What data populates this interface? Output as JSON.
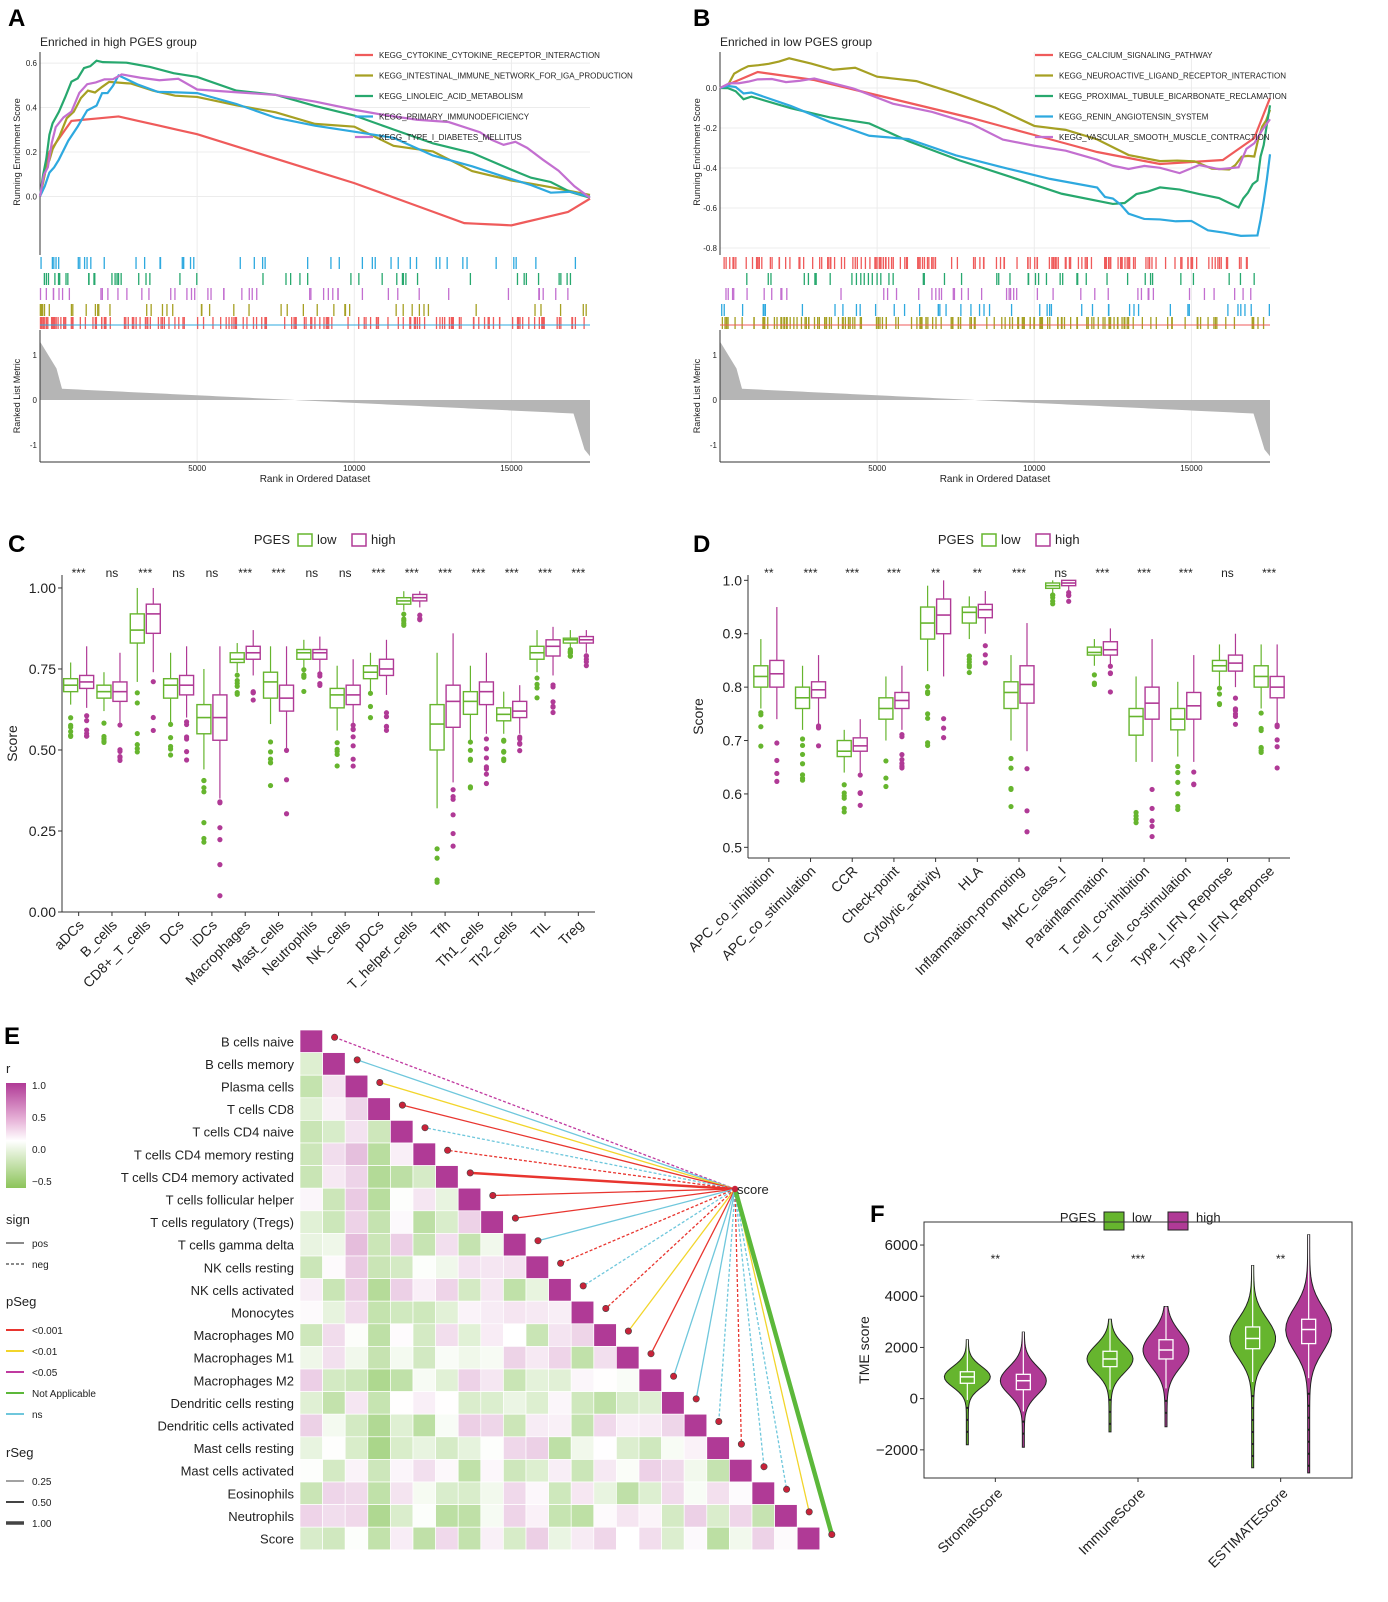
{
  "panels": {
    "A": "A",
    "B": "B",
    "C": "C",
    "D": "D",
    "E": "E",
    "F": "F"
  },
  "colors": {
    "low": "#66b52e",
    "high": "#b03a96",
    "red": "#ef5b5b",
    "olive": "#a6a023",
    "green": "#27a86e",
    "blue": "#2ea9df",
    "violet": "#c36fd0",
    "gray": "#b5b5b5"
  },
  "chart_data": [
    {
      "id": "A",
      "type": "line",
      "title": "Enriched in high PGES group",
      "ylabel": "Running Enrichment Score",
      "ylabel2": "Ranked List Metric",
      "xlabel": "Rank in Ordered Dataset",
      "yticks": [
        "0.0",
        "0.2",
        "0.4",
        "0.6"
      ],
      "y2ticks": [
        "1",
        "0",
        "-1"
      ],
      "xticks": [
        "5000",
        "10000",
        "15000"
      ],
      "ylim": [
        -0.25,
        0.65
      ],
      "xlim": [
        0,
        17500
      ],
      "series": [
        {
          "name": "KEGG_CYTOKINE_CYTOKINE_RECEPTOR_INTERACTION",
          "points": [
            [
              0,
              0
            ],
            [
              300,
              0.2
            ],
            [
              1000,
              0.34
            ],
            [
              2500,
              0.36
            ],
            [
              5000,
              0.28
            ],
            [
              10000,
              0.06
            ],
            [
              13500,
              -0.12
            ],
            [
              15000,
              -0.13
            ],
            [
              16800,
              -0.07
            ],
            [
              17500,
              -0.01
            ]
          ]
        },
        {
          "name": "KEGG_INTESTINAL_IMMUNE_NETWORK_FOR_IGA_PRODUCTION",
          "points": [
            [
              0,
              0
            ],
            [
              400,
              0.23
            ],
            [
              1300,
              0.45
            ],
            [
              2200,
              0.5
            ],
            [
              5000,
              0.45
            ],
            [
              10000,
              0.3
            ],
            [
              15000,
              0.08
            ],
            [
              17500,
              0
            ]
          ]
        },
        {
          "name": "KEGG_LINOLEIC_ACID_METABOLISM",
          "points": [
            [
              0,
              0
            ],
            [
              400,
              0.35
            ],
            [
              1200,
              0.55
            ],
            [
              2000,
              0.61
            ],
            [
              5000,
              0.53
            ],
            [
              10000,
              0.35
            ],
            [
              15000,
              0.13
            ],
            [
              17500,
              0
            ]
          ]
        },
        {
          "name": "KEGG_PRIMARY_IMMUNODEFICIENCY",
          "points": [
            [
              0,
              0
            ],
            [
              600,
              0.18
            ],
            [
              1800,
              0.43
            ],
            [
              2500,
              0.53
            ],
            [
              5000,
              0.45
            ],
            [
              10000,
              0.3
            ],
            [
              15000,
              0.07
            ],
            [
              17500,
              0
            ]
          ]
        },
        {
          "name": "KEGG_TYPE_I_DIABETES_MELLITUS",
          "points": [
            [
              0,
              0
            ],
            [
              500,
              0.3
            ],
            [
              1500,
              0.5
            ],
            [
              2600,
              0.54
            ],
            [
              5000,
              0.5
            ],
            [
              10000,
              0.4
            ],
            [
              14000,
              0.3
            ],
            [
              15500,
              0.2
            ],
            [
              17500,
              0
            ]
          ]
        }
      ]
    },
    {
      "id": "B",
      "type": "line",
      "title": "Enriched in low PGES group",
      "ylabel": "Running Enrichment Score",
      "ylabel2": "Ranked List Metric",
      "xlabel": "Rank in Ordered Dataset",
      "yticks": [
        "0.0",
        "-0.2",
        "-0.4",
        "-0.6",
        "-0.8"
      ],
      "y2ticks": [
        "1",
        "0",
        "-1"
      ],
      "xticks": [
        "5000",
        "10000",
        "15000"
      ],
      "ylim": [
        -0.82,
        0.18
      ],
      "xlim": [
        0,
        17500
      ],
      "series": [
        {
          "name": "KEGG_CALCIUM_SIGNALING_PATHWAY",
          "points": [
            [
              0,
              0
            ],
            [
              1200,
              0.08
            ],
            [
              3000,
              0.04
            ],
            [
              8000,
              -0.15
            ],
            [
              12000,
              -0.32
            ],
            [
              14000,
              -0.38
            ],
            [
              16000,
              -0.36
            ],
            [
              17000,
              -0.25
            ],
            [
              17500,
              -0.05
            ]
          ]
        },
        {
          "name": "KEGG_NEUROACTIVE_LIGAND_RECEPTOR_INTERACTION",
          "points": [
            [
              0,
              0
            ],
            [
              900,
              0.1
            ],
            [
              2200,
              0.14
            ],
            [
              5000,
              0.08
            ],
            [
              10000,
              -0.17
            ],
            [
              14000,
              -0.38
            ],
            [
              16200,
              -0.4
            ],
            [
              17000,
              -0.32
            ],
            [
              17500,
              -0.1
            ]
          ]
        },
        {
          "name": "KEGG_PROXIMAL_TUBULE_BICARBONATE_RECLAMATION",
          "points": [
            [
              0,
              0
            ],
            [
              1000,
              -0.05
            ],
            [
              6000,
              -0.25
            ],
            [
              12500,
              -0.6
            ],
            [
              14000,
              -0.5
            ],
            [
              16500,
              -0.58
            ],
            [
              17100,
              -0.45
            ],
            [
              17500,
              -0.1
            ]
          ]
        },
        {
          "name": "KEGG_RENIN_ANGIOTENSIN_SYSTEM",
          "points": [
            [
              0,
              0
            ],
            [
              1000,
              -0.03
            ],
            [
              6000,
              -0.28
            ],
            [
              12000,
              -0.52
            ],
            [
              13000,
              -0.62
            ],
            [
              15000,
              -0.68
            ],
            [
              17100,
              -0.75
            ],
            [
              17500,
              -0.35
            ]
          ]
        },
        {
          "name": "KEGG_VASCULAR_SMOOTH_MUSCLE_CONTRACTION",
          "points": [
            [
              0,
              0
            ],
            [
              1200,
              0.05
            ],
            [
              3000,
              0.03
            ],
            [
              8000,
              -0.2
            ],
            [
              12000,
              -0.35
            ],
            [
              14000,
              -0.42
            ],
            [
              16500,
              -0.38
            ],
            [
              17500,
              -0.15
            ]
          ]
        }
      ]
    },
    {
      "id": "C",
      "type": "box",
      "legend_title": "PGES",
      "legend_low": "low",
      "legend_high": "high",
      "ylabel": "Score",
      "ylim": [
        0,
        1.04
      ],
      "yticks": [
        "0.00",
        "0.25",
        "0.50",
        "0.75",
        "1.00"
      ],
      "categories": [
        "aDCs",
        "B_cells",
        "CD8+_T_cells",
        "DCs",
        "iDCs",
        "Macrophages",
        "Mast_cells",
        "Neutrophils",
        "NK_cells",
        "pDCs",
        "T_helper_cells",
        "Tfh",
        "Th1_cells",
        "Th2_cells",
        "TIL",
        "Treg"
      ],
      "sig": [
        "***",
        "ns",
        "***",
        "ns",
        "ns",
        "***",
        "***",
        "ns",
        "ns",
        "***",
        "***",
        "***",
        "***",
        "***",
        "***",
        "***"
      ],
      "low": [
        [
          0.68,
          0.7,
          0.72,
          0.64,
          0.77
        ],
        [
          0.66,
          0.68,
          0.7,
          0.62,
          0.74
        ],
        [
          0.83,
          0.87,
          0.92,
          0.71,
          1.0
        ],
        [
          0.66,
          0.7,
          0.72,
          0.58,
          0.8
        ],
        [
          0.55,
          0.6,
          0.64,
          0.44,
          0.75
        ],
        [
          0.77,
          0.78,
          0.8,
          0.74,
          0.83
        ],
        [
          0.66,
          0.71,
          0.74,
          0.58,
          0.82
        ],
        [
          0.78,
          0.8,
          0.81,
          0.75,
          0.84
        ],
        [
          0.63,
          0.67,
          0.69,
          0.56,
          0.76
        ],
        [
          0.72,
          0.74,
          0.76,
          0.68,
          0.8
        ],
        [
          0.95,
          0.96,
          0.97,
          0.93,
          0.99
        ],
        [
          0.5,
          0.58,
          0.64,
          0.32,
          0.8
        ],
        [
          0.61,
          0.65,
          0.68,
          0.53,
          0.76
        ],
        [
          0.59,
          0.61,
          0.63,
          0.55,
          0.68
        ],
        [
          0.78,
          0.8,
          0.82,
          0.74,
          0.87
        ],
        [
          0.83,
          0.84,
          0.845,
          0.81,
          0.87
        ]
      ],
      "high": [
        [
          0.69,
          0.71,
          0.73,
          0.63,
          0.82
        ],
        [
          0.65,
          0.68,
          0.71,
          0.58,
          0.8
        ],
        [
          0.86,
          0.92,
          0.95,
          0.74,
          1.0
        ],
        [
          0.67,
          0.7,
          0.73,
          0.6,
          0.82
        ],
        [
          0.53,
          0.6,
          0.67,
          0.35,
          0.82
        ],
        [
          0.78,
          0.8,
          0.82,
          0.73,
          0.87
        ],
        [
          0.62,
          0.66,
          0.7,
          0.5,
          0.82
        ],
        [
          0.78,
          0.8,
          0.81,
          0.74,
          0.85
        ],
        [
          0.64,
          0.67,
          0.7,
          0.58,
          0.78
        ],
        [
          0.73,
          0.75,
          0.78,
          0.67,
          0.84
        ],
        [
          0.96,
          0.97,
          0.98,
          0.94,
          0.99
        ],
        [
          0.57,
          0.65,
          0.7,
          0.4,
          0.86
        ],
        [
          0.64,
          0.68,
          0.71,
          0.55,
          0.8
        ],
        [
          0.6,
          0.62,
          0.65,
          0.55,
          0.7
        ],
        [
          0.79,
          0.82,
          0.84,
          0.73,
          0.88
        ],
        [
          0.83,
          0.84,
          0.85,
          0.8,
          0.87
        ]
      ]
    },
    {
      "id": "D",
      "type": "box",
      "legend_title": "PGES",
      "legend_low": "low",
      "legend_high": "high",
      "ylabel": "Score",
      "ylim": [
        0.48,
        1.01
      ],
      "yticks": [
        "0.5",
        "0.6",
        "0.7",
        "0.8",
        "0.9",
        "1.0"
      ],
      "categories": [
        "APC_co_inhibition",
        "APC_co_stimulation",
        "CCR",
        "Check-point",
        "Cytolytic_activity",
        "HLA",
        "Inflammation-promoting",
        "MHC_class_I",
        "Parainflammation",
        "T_cell_co-inhibition",
        "T_cell_co-stimulation",
        "Type_I_IFN_Reponse",
        "Type_II_IFN_Reponse"
      ],
      "sig": [
        "**",
        "***",
        "***",
        "***",
        "**",
        "**",
        "***",
        "ns",
        "***",
        "***",
        "***",
        "ns",
        "***"
      ],
      "low": [
        [
          0.8,
          0.82,
          0.84,
          0.76,
          0.89
        ],
        [
          0.76,
          0.78,
          0.8,
          0.72,
          0.84
        ],
        [
          0.67,
          0.68,
          0.7,
          0.64,
          0.72
        ],
        [
          0.74,
          0.76,
          0.78,
          0.7,
          0.82
        ],
        [
          0.89,
          0.92,
          0.95,
          0.83,
          0.99
        ],
        [
          0.92,
          0.94,
          0.95,
          0.89,
          0.97
        ],
        [
          0.76,
          0.79,
          0.81,
          0.7,
          0.86
        ],
        [
          0.985,
          0.99,
          0.995,
          0.975,
          1.0
        ],
        [
          0.86,
          0.865,
          0.875,
          0.84,
          0.89
        ],
        [
          0.71,
          0.745,
          0.76,
          0.66,
          0.82
        ],
        [
          0.72,
          0.74,
          0.76,
          0.67,
          0.81
        ],
        [
          0.83,
          0.84,
          0.85,
          0.8,
          0.88
        ],
        [
          0.8,
          0.82,
          0.84,
          0.76,
          0.88
        ]
      ],
      "high": [
        [
          0.8,
          0.825,
          0.85,
          0.74,
          0.95
        ],
        [
          0.78,
          0.795,
          0.81,
          0.73,
          0.86
        ],
        [
          0.68,
          0.69,
          0.705,
          0.64,
          0.74
        ],
        [
          0.76,
          0.775,
          0.79,
          0.72,
          0.84
        ],
        [
          0.9,
          0.935,
          0.965,
          0.82,
          1.0
        ],
        [
          0.93,
          0.945,
          0.955,
          0.9,
          0.98
        ],
        [
          0.77,
          0.805,
          0.84,
          0.68,
          0.92
        ],
        [
          0.99,
          0.995,
          1.0,
          0.98,
          1.0
        ],
        [
          0.86,
          0.87,
          0.885,
          0.84,
          0.91
        ],
        [
          0.74,
          0.77,
          0.8,
          0.66,
          0.89
        ],
        [
          0.74,
          0.765,
          0.79,
          0.66,
          0.86
        ],
        [
          0.83,
          0.845,
          0.86,
          0.8,
          0.9
        ],
        [
          0.78,
          0.8,
          0.82,
          0.73,
          0.88
        ]
      ]
    },
    {
      "id": "E",
      "type": "heatmap",
      "legend": {
        "r": "r",
        "r_ticks": [
          "1.0",
          "0.5",
          "0.0",
          "−0.5"
        ],
        "sign": "sign",
        "pos": "pos",
        "neg": "neg",
        "pseg": "pSeg",
        "pseg_items": [
          "<0.001",
          "<0.01",
          "<0.05",
          "Not Applicable",
          "ns"
        ],
        "rseg": "rSeg",
        "rseg_items": [
          "0.25",
          "0.50",
          "1.00"
        ]
      },
      "target": "score",
      "rows": [
        "B cells naive",
        "B cells memory",
        "Plasma cells",
        "T cells CD8",
        "T cells CD4 naive",
        "T cells CD4 memory resting",
        "T cells CD4 memory activated",
        "T cells follicular helper",
        "T cells regulatory (Tregs)",
        "T cells gamma delta",
        "NK cells resting",
        "NK cells activated",
        "Monocytes",
        "Macrophages M0",
        "Macrophages M1",
        "Macrophages M2",
        "Dendritic cells resting",
        "Dendritic cells activated",
        "Mast cells resting",
        "Mast cells activated",
        "Eosinophils",
        "Neutrophils",
        "Score"
      ],
      "link_p": [
        "<0.05",
        "ns",
        "<0.01",
        "<0.001",
        "ns",
        "<0.001",
        "<0.001",
        "<0.001",
        "<0.001",
        "ns",
        "<0.001",
        "ns",
        "<0.001",
        "<0.01",
        "<0.001",
        "ns",
        "ns",
        "ns",
        "<0.001",
        "ns",
        "ns",
        "<0.01",
        "Not Applicable"
      ],
      "link_sign": [
        "neg",
        "pos",
        "pos",
        "pos",
        "neg",
        "neg",
        "pos",
        "pos",
        "pos",
        "pos",
        "neg",
        "neg",
        "neg",
        "pos",
        "pos",
        "pos",
        "pos",
        "neg",
        "neg",
        "neg",
        "neg",
        "pos",
        "pos"
      ],
      "link_r": [
        0.25,
        0.25,
        0.25,
        0.25,
        0.25,
        0.25,
        0.5,
        0.25,
        0.25,
        0.25,
        0.25,
        0.25,
        0.25,
        0.25,
        0.25,
        0.25,
        0.25,
        0.25,
        0.25,
        0.25,
        0.25,
        0.25,
        1.0
      ]
    },
    {
      "id": "F",
      "type": "violin",
      "legend_title": "PGES",
      "legend_low": "low",
      "legend_high": "high",
      "ylabel": "TME score",
      "ylim": [
        -3100,
        6900
      ],
      "yticks": [
        "6000",
        "4000",
        "2000",
        "0",
        "−2000"
      ],
      "categories": [
        "StromalScore",
        "ImmuneScore",
        "ESTIMATEScore"
      ],
      "sig": [
        "**",
        "***",
        "**"
      ],
      "low": [
        [
          600,
          850,
          1050,
          -1800,
          2300
        ],
        [
          1250,
          1550,
          1850,
          -1300,
          3100
        ],
        [
          1950,
          2350,
          2800,
          -2700,
          5200
        ]
      ],
      "high": [
        [
          350,
          700,
          950,
          -1900,
          2600
        ],
        [
          1550,
          1900,
          2300,
          -1100,
          3600
        ],
        [
          2150,
          2700,
          3100,
          -2900,
          6400
        ]
      ]
    }
  ]
}
